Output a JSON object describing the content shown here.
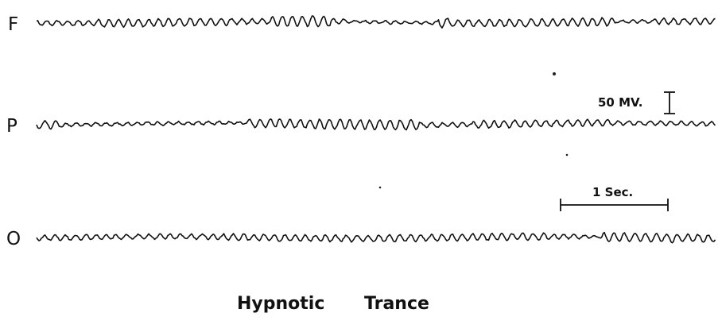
{
  "channels": [
    {
      "label": "F"
    },
    {
      "label": "P"
    },
    {
      "label": "O"
    }
  ],
  "scale": {
    "voltage": "50 MV.",
    "time": "1 Sec."
  },
  "caption": [
    "Hypnotic",
    "Trance"
  ]
}
